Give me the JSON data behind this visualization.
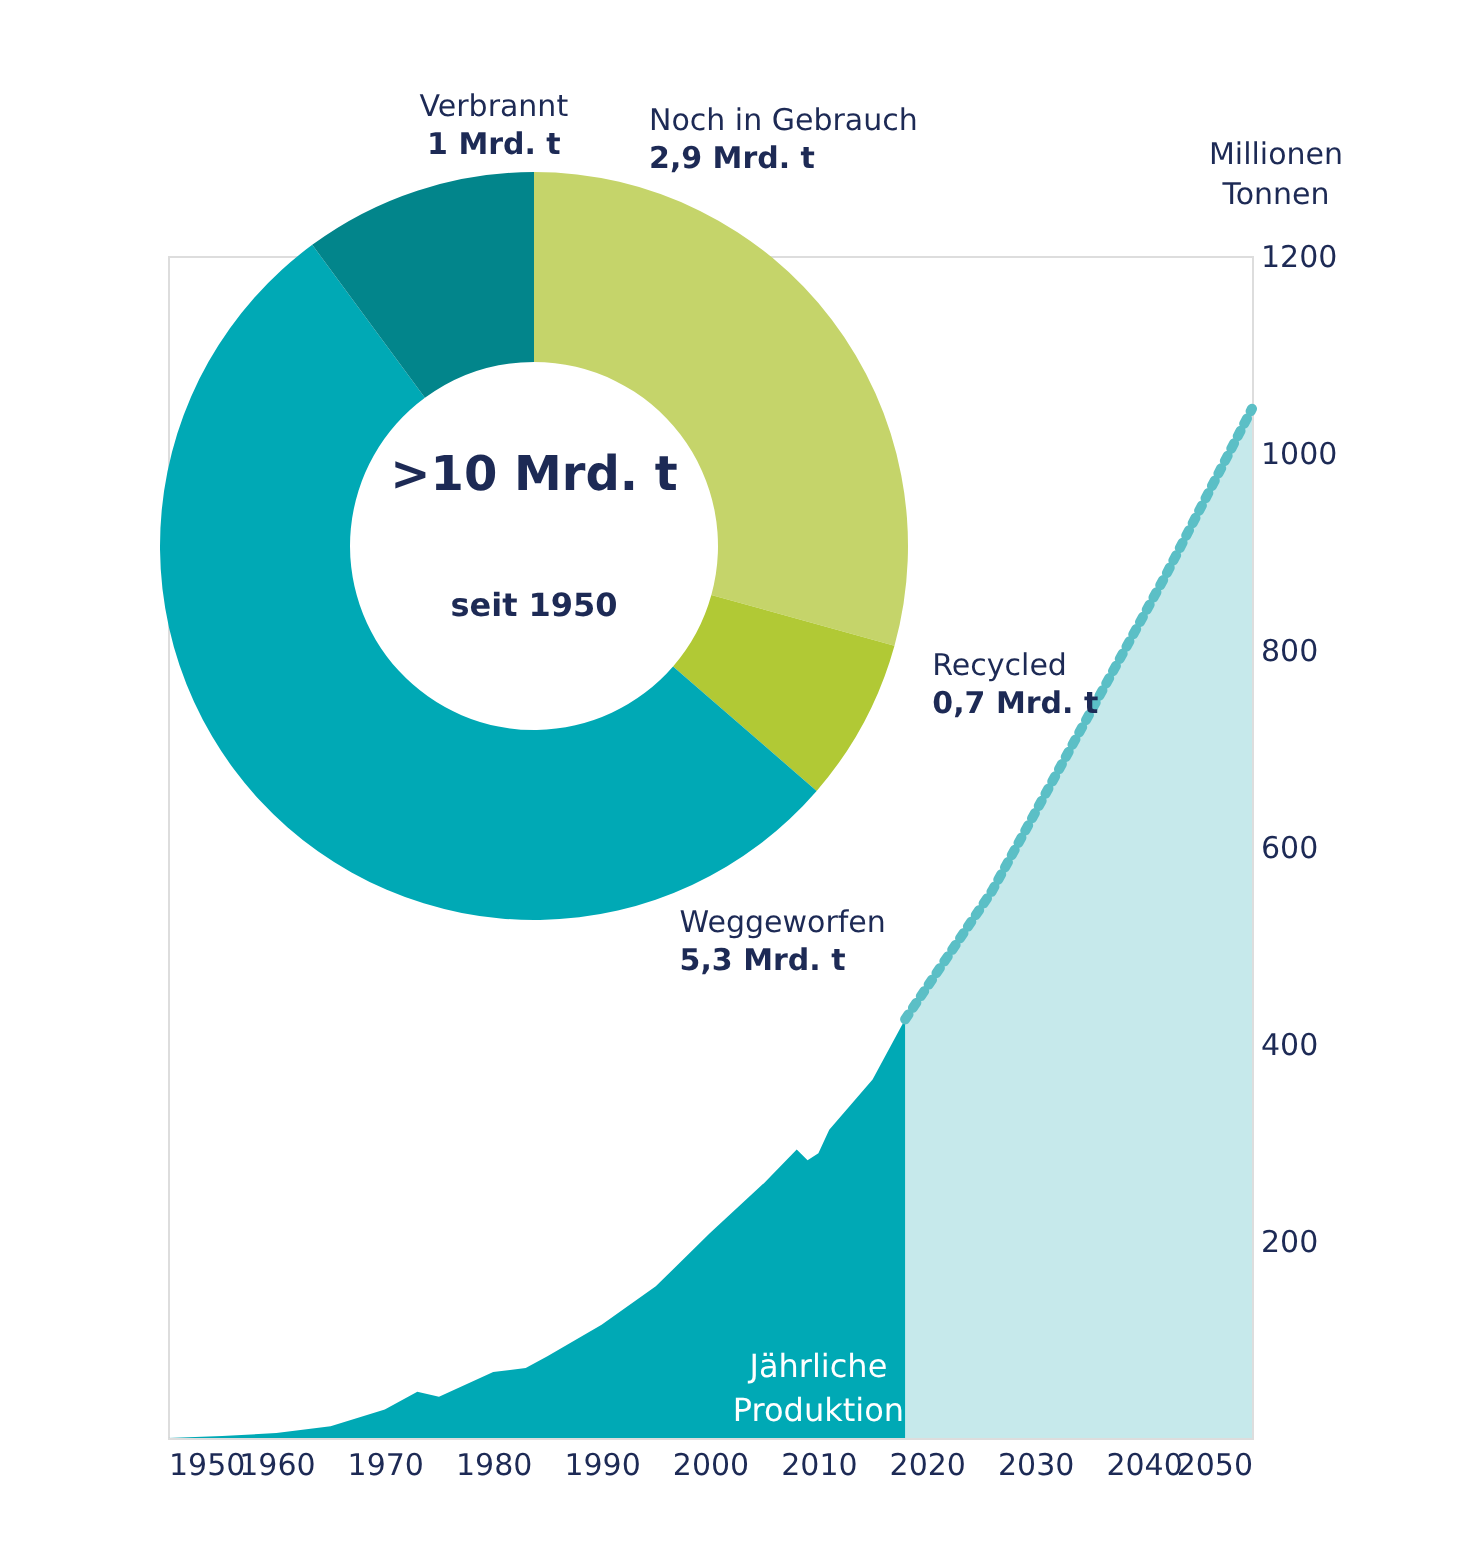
{
  "chart_data": [
    {
      "type": "donut",
      "categories": [
        "Noch in Gebrauch",
        "Recycled",
        "Weggeworfen",
        "Verbrannt"
      ],
      "values": [
        2.9,
        0.7,
        5.3,
        1
      ],
      "colors": [
        "#c5d46a",
        "#b1c935",
        "#00a9b5",
        "#02858b"
      ],
      "value_labels": [
        "2,9 Mrd. t",
        "0,7 Mrd. t",
        "5,3 Mrd. t",
        "1 Mrd. t"
      ],
      "annotations": [
        ">10 Mrd. t",
        "seit 1950"
      ]
    },
    {
      "type": "area",
      "ylabel": "Millionen Tonnen",
      "xlim": [
        1950,
        2050
      ],
      "xticks": [
        1950,
        1960,
        1970,
        1980,
        1990,
        2000,
        2010,
        2020,
        2030,
        2040,
        2050
      ],
      "ylim": [
        0,
        1200
      ],
      "yticks": [
        200,
        400,
        600,
        800,
        1000,
        1200
      ],
      "grid": false,
      "series": [
        {
          "name": "Jährliche Produktion",
          "color": "#00a9b5",
          "x": [
            1950,
            1955,
            1960,
            1965,
            1970,
            1973,
            1975,
            1980,
            1983,
            1985,
            1990,
            1995,
            2000,
            2005,
            2008,
            2009,
            2010,
            2011,
            2015,
            2018
          ],
          "values": [
            0,
            2,
            5,
            12,
            29,
            47,
            42,
            67,
            71,
            83,
            115,
            154,
            208,
            259,
            293,
            282,
            289,
            313,
            364,
            425
          ]
        },
        {
          "color": "#5bbfc6",
          "line_style": "dotted",
          "x": [
            2018,
            2026,
            2034,
            2042,
            2050
          ],
          "values": [
            425,
            555,
            715,
            875,
            1045
          ]
        }
      ]
    }
  ]
}
